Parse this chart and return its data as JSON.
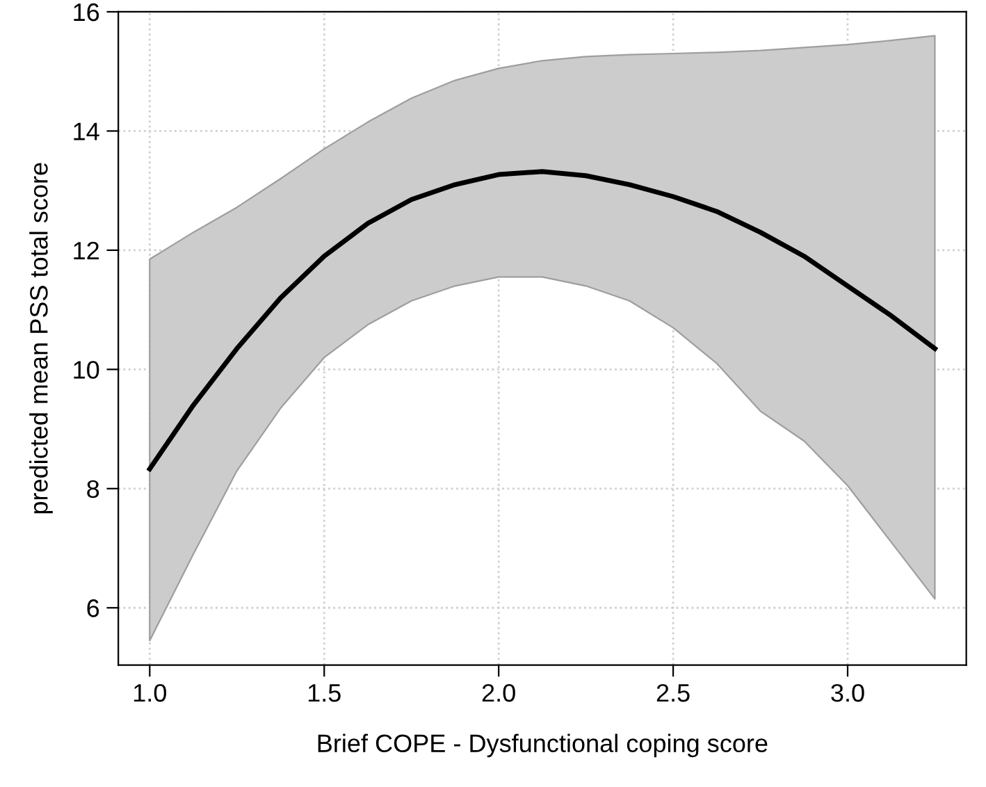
{
  "chart_data": {
    "type": "line",
    "xlabel": "Brief COPE - Dysfunctional coping score",
    "ylabel": "predicted mean PSS total score",
    "xlim": [
      0.91,
      3.34
    ],
    "ylim": [
      5.04,
      16.0
    ],
    "xticks": [
      {
        "value": 1.0,
        "label": "1.0"
      },
      {
        "value": 1.5,
        "label": "1.5"
      },
      {
        "value": 2.0,
        "label": "2.0"
      },
      {
        "value": 2.5,
        "label": "2.5"
      },
      {
        "value": 3.0,
        "label": "3.0"
      }
    ],
    "yticks": [
      6,
      8,
      10,
      12,
      14,
      16
    ],
    "grid": true,
    "marker": "none",
    "line_style": "solid",
    "series": [
      {
        "color": "#000000",
        "x": [
          1.0,
          1.125,
          1.25,
          1.375,
          1.5,
          1.625,
          1.75,
          1.875,
          2.0,
          2.125,
          2.25,
          2.375,
          2.5,
          2.625,
          2.75,
          2.875,
          3.0,
          3.125,
          3.25
        ],
        "values": [
          8.33,
          9.4,
          10.35,
          11.2,
          11.9,
          12.45,
          12.85,
          13.1,
          13.27,
          13.32,
          13.25,
          13.1,
          12.9,
          12.65,
          12.3,
          11.9,
          11.4,
          10.9,
          10.35
        ],
        "lower": [
          5.45,
          6.9,
          8.3,
          9.35,
          10.2,
          10.75,
          11.15,
          11.4,
          11.55,
          11.55,
          11.4,
          11.15,
          10.7,
          10.1,
          9.3,
          8.8,
          8.05,
          7.1,
          6.15
        ],
        "upper": [
          11.85,
          12.3,
          12.72,
          13.2,
          13.7,
          14.15,
          14.55,
          14.85,
          15.05,
          15.18,
          15.25,
          15.28,
          15.3,
          15.32,
          15.35,
          15.4,
          15.45,
          15.52,
          15.6
        ]
      }
    ]
  }
}
